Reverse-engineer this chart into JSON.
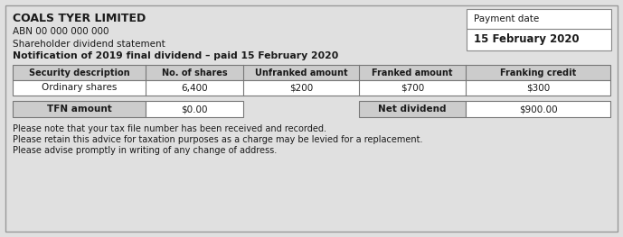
{
  "company_name": "COALS TYER LIMITED",
  "abn": "ABN 00 000 000 000",
  "statement_type": "Shareholder dividend statement",
  "notification": "Notification of 2019 final dividend – paid 15 February 2020",
  "payment_date_label": "Payment date",
  "payment_date": "15 February 2020",
  "table_headers": [
    "Security description",
    "No. of shares",
    "Unfranked amount",
    "Franked amount",
    "Franking credit"
  ],
  "table_row": [
    "Ordinary shares",
    "6,400",
    "$200",
    "$700",
    "$300"
  ],
  "tfn_label": "TFN amount",
  "tfn_value": "$0.00",
  "net_dividend_label": "Net dividend",
  "net_dividend_value": "$900.00",
  "footer_lines": [
    "Please note that your tax file number has been received and recorded.",
    "Please retain this advice for taxation purposes as a charge may be levied for a replacement.",
    "Please advise promptly in writing of any change of address."
  ],
  "bg_color": "#e0e0e0",
  "box_color": "#ffffff",
  "border_color": "#888888",
  "header_bg": "#cccccc",
  "text_color": "#1a1a1a"
}
